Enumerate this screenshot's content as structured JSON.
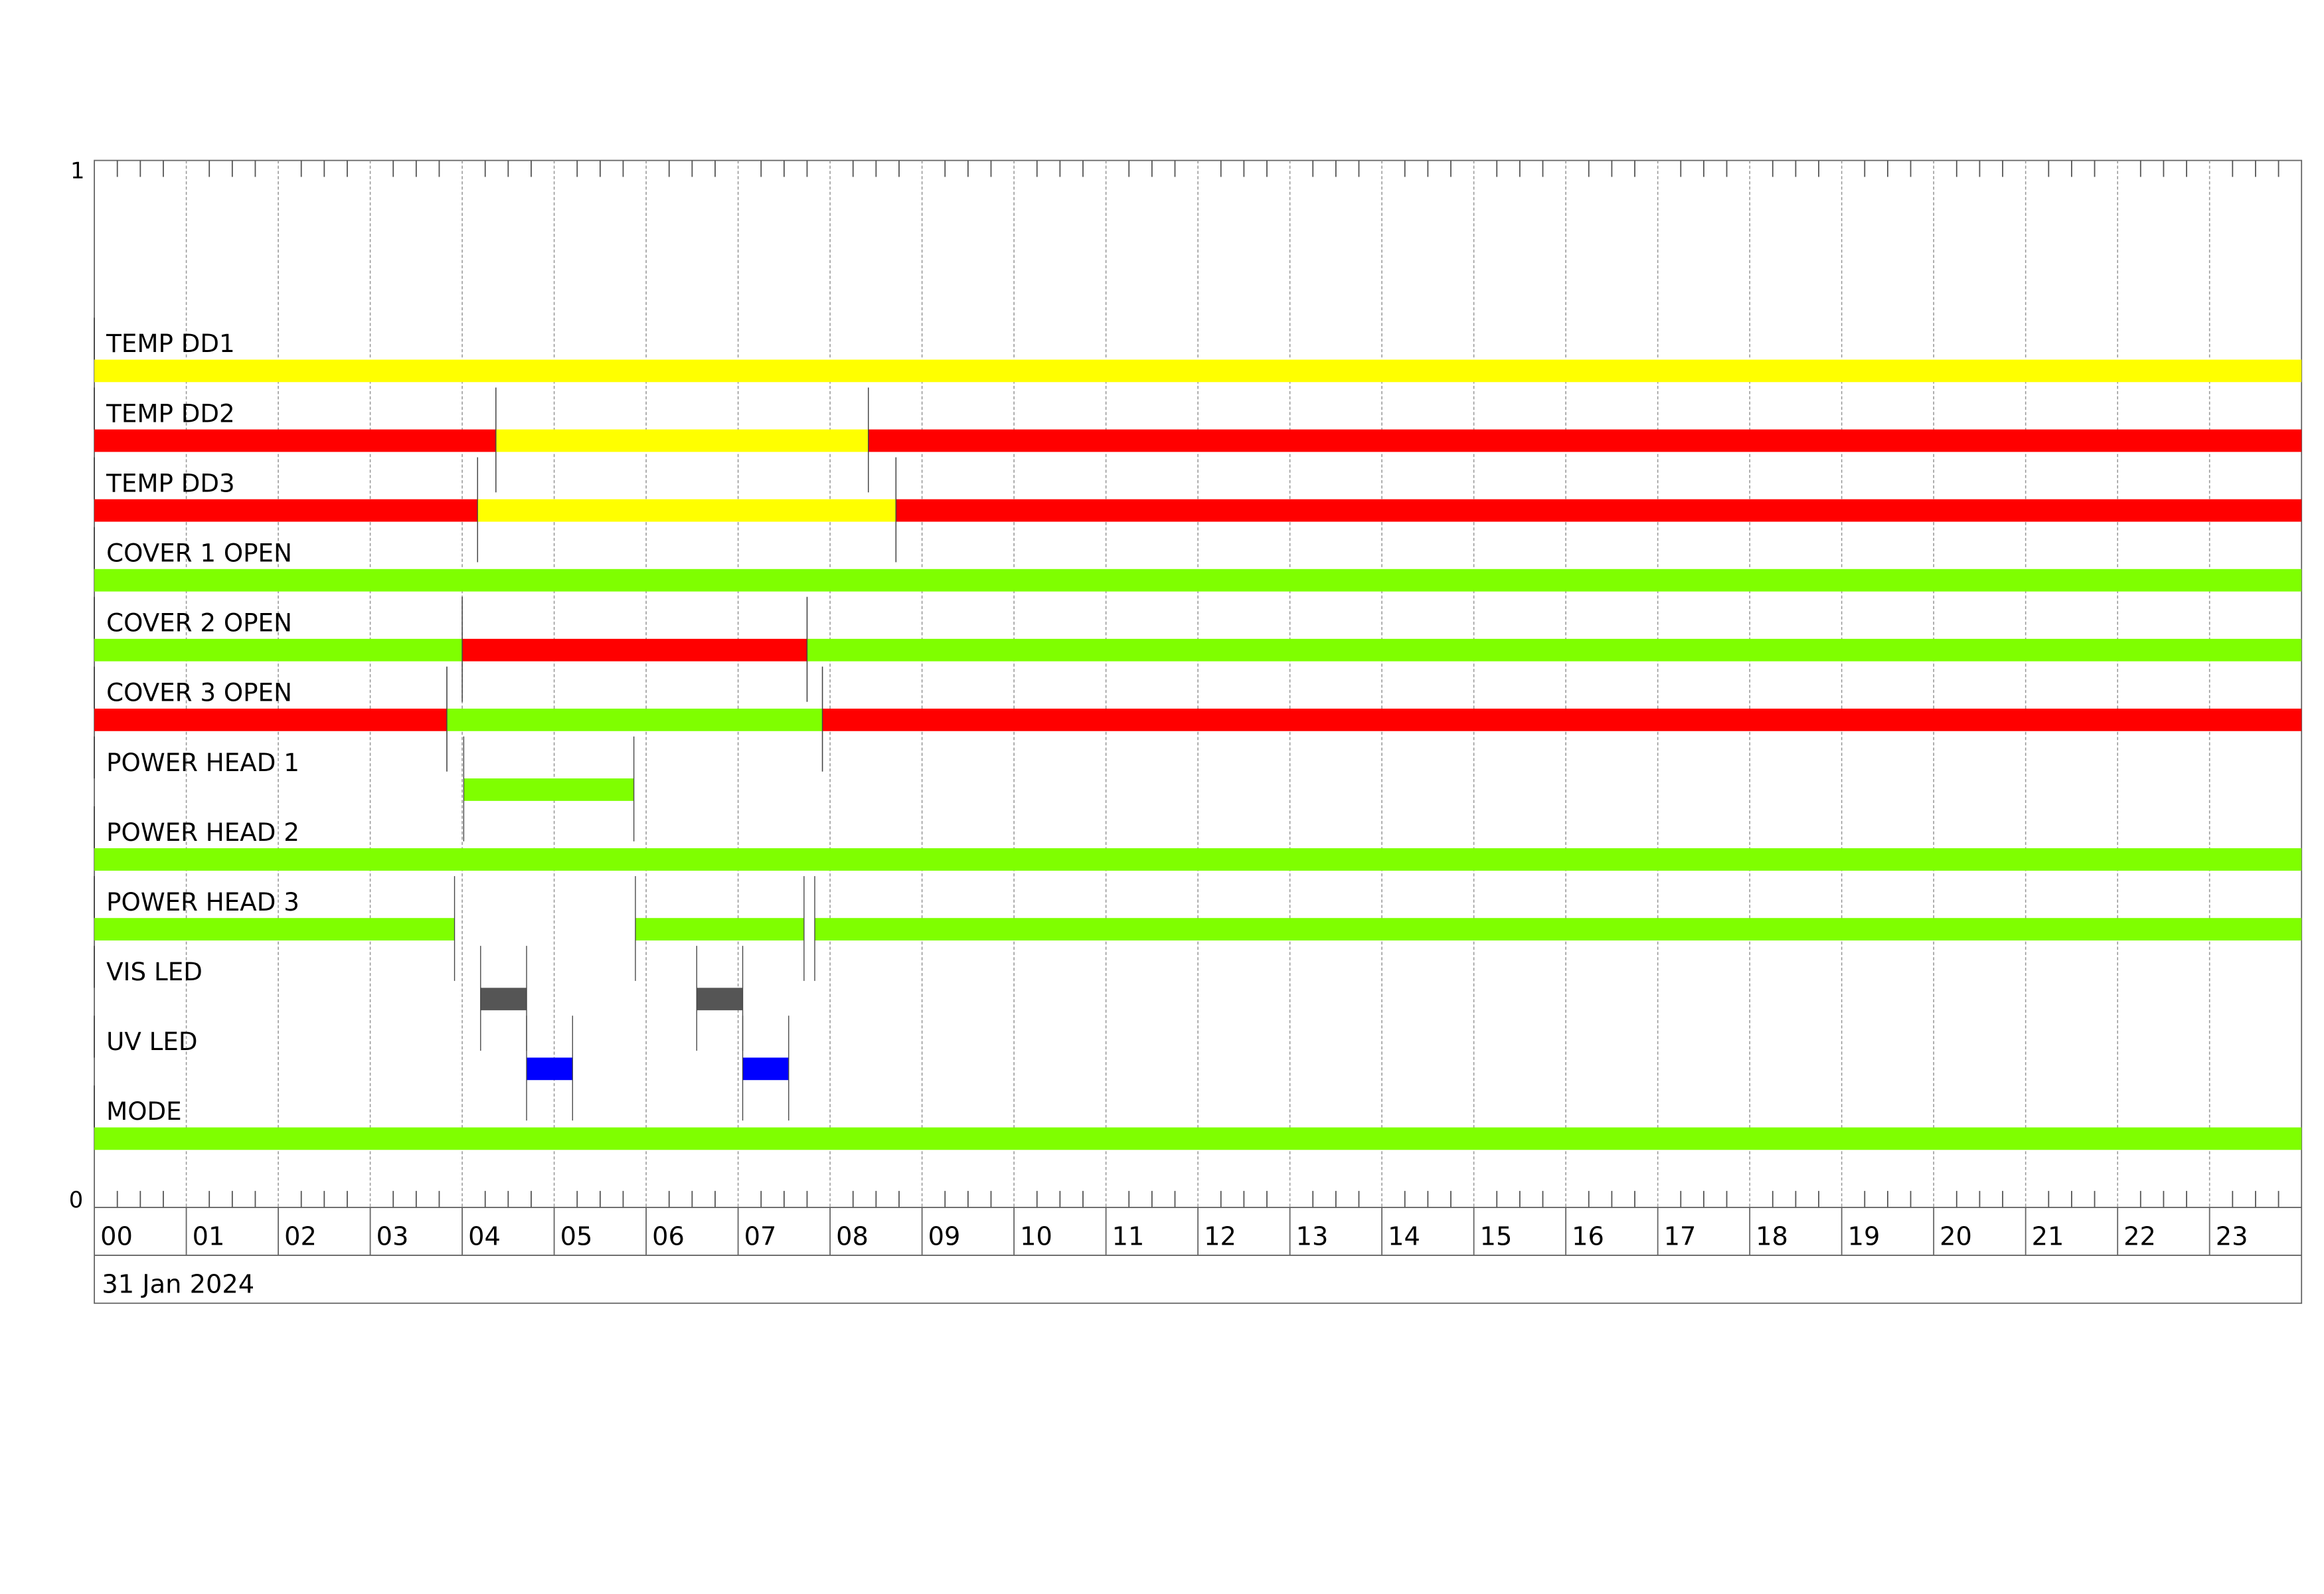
{
  "chart_data": {
    "type": "timeline",
    "date_label": "31 Jan 2024",
    "y_top_label": "1",
    "y_bottom_label": "0",
    "x_tick_labels": [
      "00",
      "01",
      "02",
      "03",
      "04",
      "05",
      "06",
      "07",
      "08",
      "09",
      "10",
      "11",
      "12",
      "13",
      "14",
      "15",
      "16",
      "17",
      "18",
      "19",
      "20",
      "21",
      "22",
      "23"
    ],
    "xlim_hours": [
      0,
      24
    ],
    "grid": true,
    "colors": {
      "ok": "#7fff00",
      "alarm": "#ff0000",
      "warn": "#ffff00",
      "vis": "#555555",
      "uv": "#0000ff"
    },
    "series": [
      {
        "name": "TEMP DD1",
        "segments": [
          {
            "start": "00:00",
            "end": "24:00",
            "color": "#ffff00"
          }
        ]
      },
      {
        "name": "TEMP DD2",
        "segments": [
          {
            "start": "00:00",
            "end": "04:22",
            "color": "#ff0000"
          },
          {
            "start": "04:22",
            "end": "08:25",
            "color": "#ffff00"
          },
          {
            "start": "08:25",
            "end": "24:00",
            "color": "#ff0000"
          }
        ]
      },
      {
        "name": "TEMP DD3",
        "segments": [
          {
            "start": "00:00",
            "end": "04:10",
            "color": "#ff0000"
          },
          {
            "start": "04:10",
            "end": "08:43",
            "color": "#ffff00"
          },
          {
            "start": "08:43",
            "end": "24:00",
            "color": "#ff0000"
          }
        ]
      },
      {
        "name": "COVER 1 OPEN",
        "segments": [
          {
            "start": "00:00",
            "end": "24:00",
            "color": "#7fff00"
          }
        ]
      },
      {
        "name": "COVER 2 OPEN",
        "segments": [
          {
            "start": "00:00",
            "end": "04:00",
            "color": "#7fff00"
          },
          {
            "start": "04:00",
            "end": "07:45",
            "color": "#ff0000"
          },
          {
            "start": "07:45",
            "end": "24:00",
            "color": "#7fff00"
          }
        ]
      },
      {
        "name": "COVER 3 OPEN",
        "segments": [
          {
            "start": "00:00",
            "end": "03:50",
            "color": "#ff0000"
          },
          {
            "start": "03:50",
            "end": "07:55",
            "color": "#7fff00"
          },
          {
            "start": "07:55",
            "end": "24:00",
            "color": "#ff0000"
          }
        ]
      },
      {
        "name": "POWER HEAD 1",
        "segments": [
          {
            "start": "04:01",
            "end": "05:52",
            "color": "#7fff00"
          }
        ]
      },
      {
        "name": "POWER HEAD 2",
        "segments": [
          {
            "start": "00:00",
            "end": "24:00",
            "color": "#7fff00"
          }
        ]
      },
      {
        "name": "POWER HEAD 3",
        "segments": [
          {
            "start": "00:00",
            "end": "03:55",
            "color": "#7fff00"
          },
          {
            "start": "05:53",
            "end": "07:43",
            "color": "#7fff00"
          },
          {
            "start": "07:50",
            "end": "24:00",
            "color": "#7fff00"
          }
        ]
      },
      {
        "name": "VIS LED",
        "segments": [
          {
            "start": "04:12",
            "end": "04:42",
            "color": "#555555"
          },
          {
            "start": "06:33",
            "end": "07:03",
            "color": "#555555"
          }
        ]
      },
      {
        "name": "UV LED",
        "segments": [
          {
            "start": "04:42",
            "end": "05:12",
            "color": "#0000ff"
          },
          {
            "start": "07:03",
            "end": "07:33",
            "color": "#0000ff"
          }
        ]
      },
      {
        "name": "MODE",
        "segments": [
          {
            "start": "00:00",
            "end": "24:00",
            "color": "#7fff00"
          }
        ]
      }
    ]
  }
}
